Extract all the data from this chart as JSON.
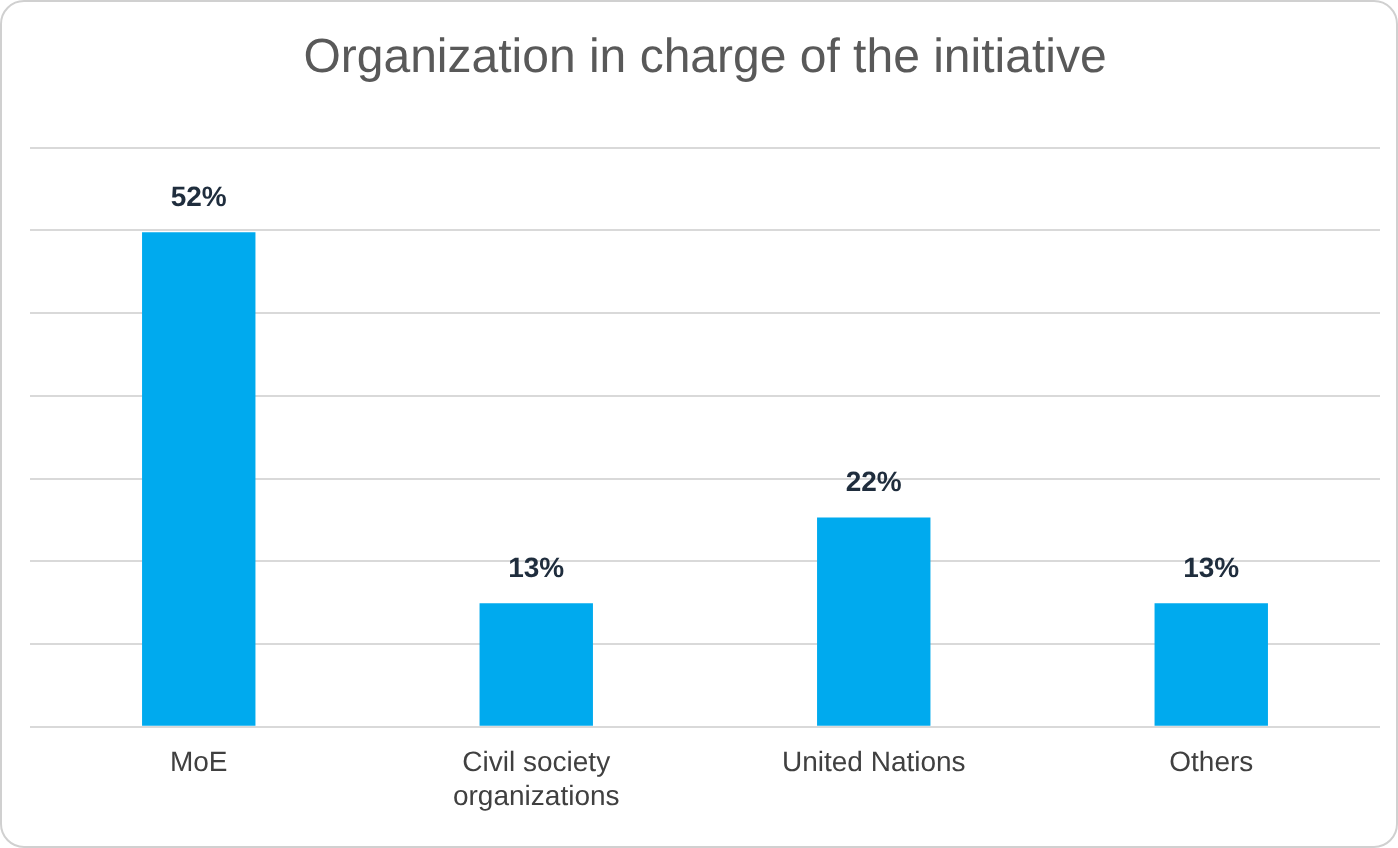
{
  "chart_data": {
    "type": "bar",
    "title": "Organization in charge of the initiative",
    "categories": [
      "MoE",
      "Civil society organizations",
      "United Nations",
      "Others"
    ],
    "values": [
      52,
      13,
      22,
      13
    ],
    "color": "#00aaee",
    "ylim": [
      0,
      60.9
    ],
    "yticks": [
      {
        "value": 0,
        "label": null
      },
      {
        "value": 8.7,
        "label": null
      },
      {
        "value": 17.4,
        "label": null
      },
      {
        "value": 26.1,
        "label": null
      },
      {
        "value": 34.8,
        "label": null
      },
      {
        "value": 43.5,
        "label": null
      },
      {
        "value": 52.2,
        "label": null
      },
      {
        "value": 60.9,
        "label": null
      }
    ],
    "value_labels": [
      "52%",
      "13%",
      "22%",
      "13%"
    ],
    "grid": "y",
    "tick_labels": "x",
    "legend": false
  }
}
